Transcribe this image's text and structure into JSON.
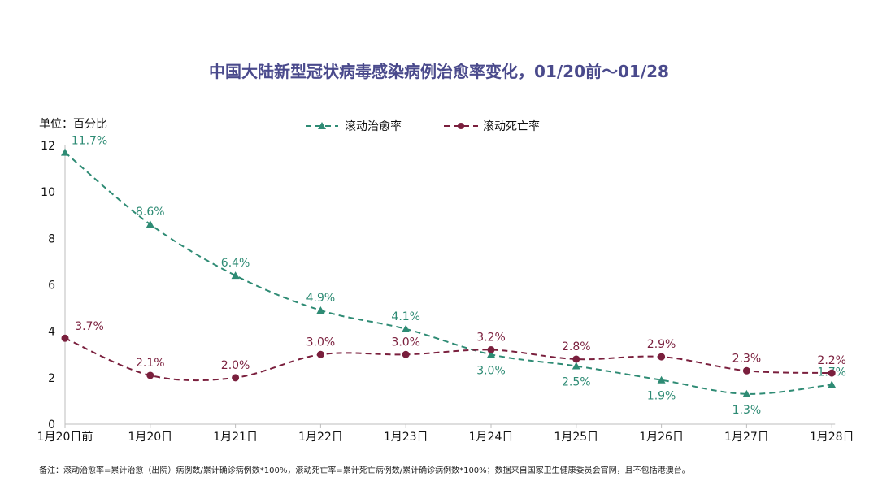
{
  "chart_data": {
    "type": "line",
    "title": "中国大陆新型冠状病毒感染病例治愈率变化，01/20前～01/28",
    "unit_label": "单位：百分比",
    "categories": [
      "1月20日前",
      "1月20日",
      "1月21日",
      "1月22日",
      "1月23日",
      "1月24日",
      "1月25日",
      "1月26日",
      "1月27日",
      "1月28日"
    ],
    "ylim": [
      0,
      12
    ],
    "yticks": [
      "0",
      "2",
      "4",
      "6",
      "8",
      "10",
      "12"
    ],
    "grid": false,
    "legend_position": "top-center",
    "series": [
      {
        "name": "滚动治愈率",
        "color": "#2e8b74",
        "marker": "triangle",
        "values": [
          11.7,
          8.6,
          6.4,
          4.9,
          4.1,
          3.0,
          2.5,
          1.9,
          1.3,
          1.7
        ],
        "labels": [
          "11.7%",
          "8.6%",
          "6.4%",
          "4.9%",
          "4.1%",
          "3.0%",
          "2.5%",
          "1.9%",
          "1.3%",
          "1.7%"
        ]
      },
      {
        "name": "滚动死亡率",
        "color": "#7a1f3d",
        "marker": "circle",
        "values": [
          3.7,
          2.1,
          2.0,
          3.0,
          3.0,
          3.2,
          2.8,
          2.9,
          2.3,
          2.2
        ],
        "labels": [
          "3.7%",
          "2.1%",
          "2.0%",
          "3.0%",
          "3.0%",
          "3.2%",
          "2.8%",
          "2.9%",
          "2.3%",
          "2.2%"
        ]
      }
    ],
    "footnote": "备注：滚动治愈率=累计治愈（出院）病例数/累计确诊病例数*100%，滚动死亡率=累计死亡病例数/累计确诊病例数*100%；数据来自国家卫生健康委员会官网，且不包括港澳台。"
  }
}
